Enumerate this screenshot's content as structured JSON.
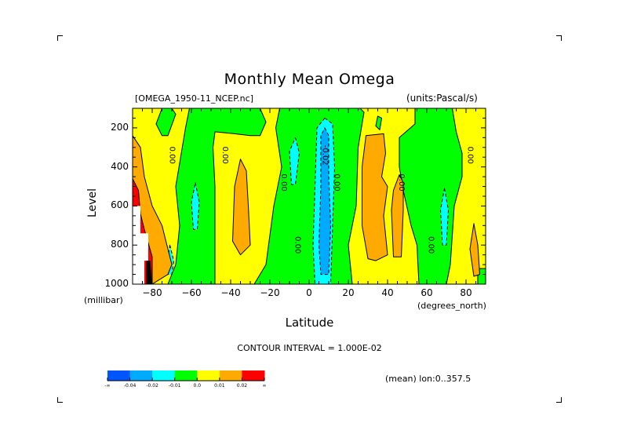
{
  "chart_data": {
    "type": "heatmap",
    "subtype": "filled-contour",
    "title": "Monthly Mean Omega",
    "file_label": "[OMEGA_1950-11_NCEP.nc]",
    "units_label": "(units:Pascal/s)",
    "xlabel": "Latitude",
    "xunits": "(degrees_north)",
    "ylabel": "Level",
    "yunits": "(millibar)",
    "xlim": [
      -90,
      90
    ],
    "ylim": [
      1000,
      100
    ],
    "y_inverted": true,
    "xticks": [
      -80,
      -60,
      -40,
      -20,
      0,
      20,
      40,
      60,
      80
    ],
    "xtick_labels": [
      "-80",
      "-60",
      "-40",
      "-20",
      "0",
      "20",
      "40",
      "60",
      "80"
    ],
    "yticks": [
      200,
      400,
      600,
      800,
      1000
    ],
    "ytick_labels": [
      "200",
      "400",
      "600",
      "800",
      "1000"
    ],
    "contour_interval_label": "CONTOUR INTERVAL = 1.000E-02",
    "average_label": "(mean) lon:0..357.5",
    "contour_labels": [
      {
        "text": "0.00",
        "lat": -71,
        "level": 340
      },
      {
        "text": "0.00",
        "lat": -44,
        "level": 340
      },
      {
        "text": "0.00",
        "lat": -14,
        "level": 480
      },
      {
        "text": "0.00",
        "lat": -7,
        "level": 800
      },
      {
        "text": "-0.02",
        "lat": 7,
        "level": 340
      },
      {
        "text": "0.00",
        "lat": 13,
        "level": 480
      },
      {
        "text": "0.00",
        "lat": 46,
        "level": 480
      },
      {
        "text": "0.00",
        "lat": 61,
        "level": 800
      },
      {
        "text": "0.00",
        "lat": 81,
        "level": 340
      }
    ],
    "colorbar": {
      "bins": [
        {
          "range": "< -0.04",
          "color": "#0055ff"
        },
        {
          "range": "-0.04 to -0.02",
          "color": "#00aaff"
        },
        {
          "range": "-0.02 to -0.01",
          "color": "#00ffff"
        },
        {
          "range": "-0.01 to 0.0",
          "color": "#00ff00"
        },
        {
          "range": "0.0 to 0.01",
          "color": "#ffff00"
        },
        {
          "range": "0.01 to 0.02",
          "color": "#ffaa00"
        },
        {
          "range": "> 0.02",
          "color": "#ff0000"
        }
      ],
      "tick_labels": [
        "-∞",
        "-0.04",
        "-0.02",
        "-0.01",
        "0.0",
        "0.01",
        "0.02",
        "∞"
      ]
    },
    "regions": [
      {
        "level_bin": "0.0 to 0.01",
        "color": "#ffff00",
        "desc": "background positive weak omega"
      },
      {
        "level_bin": "-0.01 to 0.0",
        "color": "#00ff00",
        "poly": [
          [
            -75,
            100
          ],
          [
            -70,
            100
          ],
          [
            -68,
            130
          ],
          [
            -72,
            240
          ],
          [
            -75,
            240
          ],
          [
            -78,
            180
          ]
        ]
      },
      {
        "level_bin": "-0.01 to 0.0",
        "color": "#00ff00",
        "poly": [
          [
            -61,
            100
          ],
          [
            -25,
            100
          ],
          [
            -22,
            170
          ],
          [
            -25,
            240
          ],
          [
            -30,
            240
          ],
          [
            -38,
            230
          ],
          [
            -48,
            220
          ],
          [
            -49,
            300
          ],
          [
            -48,
            500
          ],
          [
            -48,
            1000
          ],
          [
            -72,
            1000
          ],
          [
            -68,
            900
          ],
          [
            -66,
            700
          ],
          [
            -68,
            500
          ],
          [
            -63,
            200
          ]
        ]
      },
      {
        "level_bin": "-0.01 to 0.0",
        "color": "#00ff00",
        "poly": [
          [
            -15,
            100
          ],
          [
            26,
            100
          ],
          [
            28,
            120
          ],
          [
            25,
            300
          ],
          [
            24,
            600
          ],
          [
            20,
            800
          ],
          [
            22,
            1000
          ],
          [
            -28,
            1000
          ],
          [
            -22,
            900
          ],
          [
            -18,
            600
          ],
          [
            -14,
            400
          ],
          [
            -17,
            200
          ]
        ]
      },
      {
        "level_bin": "-0.01 to 0.0",
        "color": "#00ff00",
        "poly": [
          [
            -90,
            1000
          ],
          [
            -90,
            990
          ],
          [
            -88,
            1000
          ]
        ]
      },
      {
        "level_bin": "-0.01 to 0.0",
        "color": "#00ff00",
        "poly": [
          [
            54,
            100
          ],
          [
            73,
            100
          ],
          [
            75,
            220
          ],
          [
            78,
            330
          ],
          [
            78,
            450
          ],
          [
            74,
            600
          ],
          [
            72,
            900
          ],
          [
            70,
            1000
          ],
          [
            56,
            1000
          ],
          [
            55,
            800
          ],
          [
            52,
            700
          ],
          [
            48,
            520
          ],
          [
            46,
            400
          ],
          [
            46,
            250
          ],
          [
            54,
            180
          ]
        ]
      },
      {
        "level_bin": "-0.01 to 0.0",
        "color": "#00ff00",
        "poly": [
          [
            35,
            140
          ],
          [
            37,
            150
          ],
          [
            36,
            210
          ],
          [
            34,
            190
          ]
        ]
      },
      {
        "level_bin": "-0.01 to 0.0",
        "color": "#00ff00",
        "poly": [
          [
            86,
            920
          ],
          [
            90,
            920
          ],
          [
            90,
            1000
          ],
          [
            86,
            1000
          ]
        ]
      },
      {
        "level_bin": "-0.02 to -0.01",
        "color": "#00ffff",
        "poly": [
          [
            -58,
            480
          ],
          [
            -56,
            580
          ],
          [
            -57,
            720
          ],
          [
            -59,
            720
          ],
          [
            -60,
            580
          ]
        ]
      },
      {
        "level_bin": "-0.02 to -0.01",
        "color": "#00ffff",
        "poly": [
          [
            -71,
            800
          ],
          [
            -69,
            880
          ],
          [
            -70,
            950
          ],
          [
            -72,
            950
          ],
          [
            -72,
            870
          ]
        ]
      },
      {
        "level_bin": "-0.02 to -0.01",
        "color": "#00ffff",
        "poly": [
          [
            -7,
            250
          ],
          [
            -5,
            330
          ],
          [
            -7,
            490
          ],
          [
            -9,
            490
          ],
          [
            -10,
            320
          ]
        ]
      },
      {
        "level_bin": "-0.02 to -0.01",
        "color": "#00ffff",
        "poly": [
          [
            8,
            150
          ],
          [
            12,
            180
          ],
          [
            13,
            400
          ],
          [
            12,
            700
          ],
          [
            11,
            1000
          ],
          [
            3,
            1000
          ],
          [
            2,
            800
          ],
          [
            3,
            500
          ],
          [
            4,
            200
          ]
        ]
      },
      {
        "level_bin": "-0.02 to -0.01",
        "color": "#00ffff",
        "poly": [
          [
            69,
            510
          ],
          [
            71,
            620
          ],
          [
            70,
            800
          ],
          [
            68,
            800
          ],
          [
            67,
            620
          ]
        ]
      },
      {
        "level_bin": "-0.04 to -0.02",
        "color": "#00aaff",
        "poly": [
          [
            8,
            200
          ],
          [
            10,
            240
          ],
          [
            10,
            450
          ],
          [
            11,
            700
          ],
          [
            10,
            950
          ],
          [
            6,
            950
          ],
          [
            5,
            800
          ],
          [
            6,
            500
          ],
          [
            6,
            240
          ]
        ]
      },
      {
        "level_bin": "0.01 to 0.02",
        "color": "#ffaa00",
        "poly": [
          [
            -90,
            240
          ],
          [
            -86,
            300
          ],
          [
            -84,
            450
          ],
          [
            -80,
            600
          ],
          [
            -75,
            700
          ],
          [
            -70,
            900
          ],
          [
            -72,
            950
          ],
          [
            -80,
            1000
          ],
          [
            -90,
            1000
          ]
        ]
      },
      {
        "level_bin": "0.01 to 0.02",
        "color": "#ffaa00",
        "poly": [
          [
            -35,
            360
          ],
          [
            -32,
            420
          ],
          [
            -31,
            600
          ],
          [
            -30,
            800
          ],
          [
            -35,
            850
          ],
          [
            -39,
            780
          ],
          [
            -38,
            500
          ]
        ]
      },
      {
        "level_bin": "0.01 to 0.02",
        "color": "#ffaa00",
        "poly": [
          [
            29,
            240
          ],
          [
            38,
            230
          ],
          [
            39,
            330
          ],
          [
            37,
            450
          ],
          [
            40,
            500
          ],
          [
            38,
            650
          ],
          [
            40,
            850
          ],
          [
            34,
            880
          ],
          [
            30,
            870
          ],
          [
            27,
            700
          ],
          [
            27,
            400
          ]
        ]
      },
      {
        "level_bin": "0.01 to 0.02",
        "color": "#ffaa00",
        "poly": [
          [
            46,
            440
          ],
          [
            48,
            480
          ],
          [
            48,
            620
          ],
          [
            47,
            860
          ],
          [
            43,
            860
          ],
          [
            42,
            620
          ],
          [
            43,
            520
          ]
        ]
      },
      {
        "level_bin": "0.01 to 0.02",
        "color": "#ffaa00",
        "poly": [
          [
            84,
            690
          ],
          [
            86,
            800
          ],
          [
            87,
            950
          ],
          [
            84,
            960
          ],
          [
            82,
            820
          ]
        ]
      },
      {
        "level_bin": "> 0.02",
        "color": "#ff0000",
        "poly": [
          [
            -90,
            460
          ],
          [
            -87,
            520
          ],
          [
            -86,
            640
          ],
          [
            -84,
            720
          ],
          [
            -80,
            860
          ],
          [
            -80,
            1000
          ],
          [
            -86,
            1000
          ],
          [
            -90,
            660
          ]
        ]
      },
      {
        "level_bin": "undefined",
        "color": "#ffffff",
        "poly": [
          [
            -90,
            600
          ],
          [
            -86,
            600
          ],
          [
            -86,
            740
          ],
          [
            -82,
            740
          ],
          [
            -82,
            880
          ],
          [
            -84,
            880
          ],
          [
            -84,
            1000
          ],
          [
            -90,
            1000
          ]
        ]
      },
      {
        "level_bin": "> 0.02 (dense contours)",
        "color": "#000000",
        "poly": [
          [
            -83,
            880
          ],
          [
            -81,
            880
          ],
          [
            -80,
            1000
          ],
          [
            -83,
            1000
          ]
        ]
      }
    ]
  },
  "ui": {
    "corner_marks": [
      "top-left",
      "top-right",
      "bottom-left",
      "bottom-right"
    ]
  }
}
